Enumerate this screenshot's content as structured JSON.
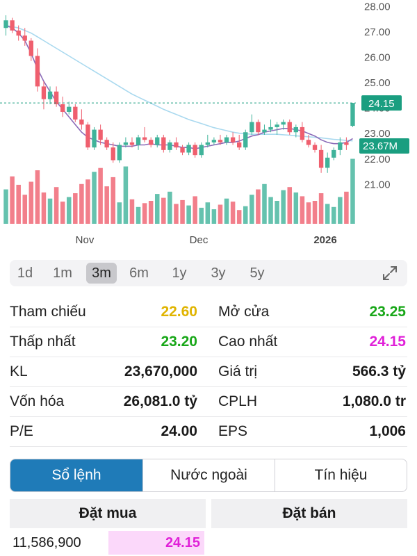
{
  "chart": {
    "y_ticks": [
      "28.00",
      "27.00",
      "26.00",
      "25.00",
      "24.00",
      "23.00",
      "22.00",
      "21.00"
    ],
    "x_labels": [
      "Nov",
      "Dec",
      "2026"
    ],
    "last_price_label": "24.15",
    "volume_label": "23.67M",
    "colors": {
      "up": "#3fb39a",
      "down": "#ef5f6e",
      "ma_short": "#8b6bb8",
      "ma_long": "#a9d9ef",
      "accent": "#1a9e80"
    }
  },
  "chart_data": {
    "type": "candlestick",
    "y_range": [
      20.0,
      28.2
    ],
    "y_ticks": [
      28,
      27,
      26,
      25,
      24,
      23,
      22,
      21
    ],
    "x_labels": [
      "Nov",
      "Dec",
      "2026"
    ],
    "last_price": 24.15,
    "last_volume": "23.67M",
    "candles": [
      {
        "o": 27.1,
        "h": 27.6,
        "l": 26.8,
        "c": 27.4
      },
      {
        "o": 27.4,
        "h": 27.5,
        "l": 26.9,
        "c": 27.0
      },
      {
        "o": 27.0,
        "h": 27.2,
        "l": 26.6,
        "c": 26.8
      },
      {
        "o": 26.8,
        "h": 27.1,
        "l": 26.4,
        "c": 26.6
      },
      {
        "o": 26.6,
        "h": 26.7,
        "l": 25.8,
        "c": 26.0
      },
      {
        "o": 26.0,
        "h": 26.3,
        "l": 24.6,
        "c": 24.8
      },
      {
        "o": 24.8,
        "h": 25.0,
        "l": 23.9,
        "c": 24.3
      },
      {
        "o": 24.3,
        "h": 24.8,
        "l": 24.1,
        "c": 24.6
      },
      {
        "o": 24.6,
        "h": 24.8,
        "l": 24.0,
        "c": 24.1
      },
      {
        "o": 24.1,
        "h": 24.4,
        "l": 23.6,
        "c": 23.8
      },
      {
        "o": 23.8,
        "h": 24.2,
        "l": 23.7,
        "c": 24.0
      },
      {
        "o": 24.0,
        "h": 24.1,
        "l": 23.4,
        "c": 23.5
      },
      {
        "o": 23.5,
        "h": 23.9,
        "l": 23.1,
        "c": 23.3
      },
      {
        "o": 23.3,
        "h": 23.4,
        "l": 22.3,
        "c": 22.4
      },
      {
        "o": 22.4,
        "h": 23.2,
        "l": 22.3,
        "c": 23.1
      },
      {
        "o": 23.1,
        "h": 23.3,
        "l": 22.5,
        "c": 22.7
      },
      {
        "o": 22.7,
        "h": 22.8,
        "l": 22.3,
        "c": 22.4
      },
      {
        "o": 22.4,
        "h": 22.6,
        "l": 21.8,
        "c": 21.9
      },
      {
        "o": 21.9,
        "h": 22.6,
        "l": 21.8,
        "c": 22.5
      },
      {
        "o": 22.5,
        "h": 22.8,
        "l": 22.4,
        "c": 22.6
      },
      {
        "o": 22.6,
        "h": 22.8,
        "l": 22.4,
        "c": 22.5
      },
      {
        "o": 22.5,
        "h": 22.9,
        "l": 22.3,
        "c": 22.8
      },
      {
        "o": 22.8,
        "h": 23.2,
        "l": 22.6,
        "c": 22.7
      },
      {
        "o": 22.7,
        "h": 22.8,
        "l": 22.4,
        "c": 22.5
      },
      {
        "o": 22.5,
        "h": 22.9,
        "l": 22.4,
        "c": 22.8
      },
      {
        "o": 22.8,
        "h": 22.9,
        "l": 22.2,
        "c": 22.3
      },
      {
        "o": 22.3,
        "h": 22.7,
        "l": 22.2,
        "c": 22.6
      },
      {
        "o": 22.6,
        "h": 22.8,
        "l": 22.3,
        "c": 22.4
      },
      {
        "o": 22.4,
        "h": 22.5,
        "l": 22.1,
        "c": 22.2
      },
      {
        "o": 22.2,
        "h": 22.6,
        "l": 22.1,
        "c": 22.5
      },
      {
        "o": 22.5,
        "h": 22.6,
        "l": 22.0,
        "c": 22.1
      },
      {
        "o": 22.1,
        "h": 22.6,
        "l": 22.0,
        "c": 22.5
      },
      {
        "o": 22.5,
        "h": 22.9,
        "l": 22.4,
        "c": 22.6
      },
      {
        "o": 22.6,
        "h": 22.8,
        "l": 22.5,
        "c": 22.7
      },
      {
        "o": 22.7,
        "h": 22.9,
        "l": 22.5,
        "c": 22.6
      },
      {
        "o": 22.6,
        "h": 22.9,
        "l": 22.5,
        "c": 22.8
      },
      {
        "o": 22.8,
        "h": 23.0,
        "l": 22.5,
        "c": 22.6
      },
      {
        "o": 22.6,
        "h": 22.9,
        "l": 22.3,
        "c": 22.4
      },
      {
        "o": 22.4,
        "h": 23.1,
        "l": 22.3,
        "c": 23.0
      },
      {
        "o": 23.0,
        "h": 23.7,
        "l": 22.9,
        "c": 23.4
      },
      {
        "o": 23.4,
        "h": 23.5,
        "l": 22.9,
        "c": 23.0
      },
      {
        "o": 23.0,
        "h": 23.3,
        "l": 22.9,
        "c": 23.1
      },
      {
        "o": 23.1,
        "h": 23.5,
        "l": 23.0,
        "c": 23.2
      },
      {
        "o": 23.2,
        "h": 23.4,
        "l": 22.9,
        "c": 23.3
      },
      {
        "o": 23.3,
        "h": 23.5,
        "l": 23.1,
        "c": 23.4
      },
      {
        "o": 23.4,
        "h": 23.5,
        "l": 22.9,
        "c": 23.0
      },
      {
        "o": 23.0,
        "h": 23.3,
        "l": 22.8,
        "c": 23.2
      },
      {
        "o": 23.2,
        "h": 23.4,
        "l": 22.6,
        "c": 22.7
      },
      {
        "o": 22.7,
        "h": 22.9,
        "l": 22.4,
        "c": 22.5
      },
      {
        "o": 22.5,
        "h": 22.6,
        "l": 22.2,
        "c": 22.3
      },
      {
        "o": 22.3,
        "h": 22.5,
        "l": 21.4,
        "c": 21.6
      },
      {
        "o": 21.6,
        "h": 22.2,
        "l": 21.4,
        "c": 22.0
      },
      {
        "o": 22.0,
        "h": 22.4,
        "l": 21.9,
        "c": 22.3
      },
      {
        "o": 22.3,
        "h": 22.8,
        "l": 22.1,
        "c": 22.6
      },
      {
        "o": 22.6,
        "h": 22.8,
        "l": 22.3,
        "c": 22.5
      },
      {
        "o": 23.25,
        "h": 24.15,
        "l": 23.2,
        "c": 24.15
      }
    ],
    "volumes": [
      0.45,
      0.62,
      0.51,
      0.38,
      0.55,
      0.7,
      0.41,
      0.33,
      0.48,
      0.29,
      0.35,
      0.4,
      0.52,
      0.58,
      0.68,
      0.73,
      0.49,
      0.61,
      0.28,
      0.75,
      0.32,
      0.22,
      0.27,
      0.3,
      0.39,
      0.34,
      0.42,
      0.26,
      0.31,
      0.24,
      0.36,
      0.21,
      0.28,
      0.19,
      0.25,
      0.33,
      0.29,
      0.18,
      0.23,
      0.38,
      0.45,
      0.52,
      0.35,
      0.3,
      0.44,
      0.48,
      0.41,
      0.36,
      0.28,
      0.3,
      0.4,
      0.26,
      0.22,
      0.35,
      0.42,
      0.85
    ],
    "ma_short": [
      27.2,
      27.1,
      26.9,
      26.6,
      26.1,
      25.5,
      25.0,
      24.6,
      24.2,
      23.9,
      23.6,
      23.3,
      23.0,
      22.8,
      22.7,
      22.6,
      22.55,
      22.5,
      22.45,
      22.45,
      22.45,
      22.5,
      22.5,
      22.55,
      22.5,
      22.5,
      22.5,
      22.45,
      22.4,
      22.4,
      22.35,
      22.4,
      22.45,
      22.5,
      22.55,
      22.6,
      22.6,
      22.65,
      22.75,
      22.85,
      22.9,
      23.0,
      23.05,
      23.1,
      23.15,
      23.15,
      23.1,
      23.05,
      22.95,
      22.85,
      22.7,
      22.6,
      22.55,
      22.55,
      22.6,
      22.75
    ],
    "ma_long": [
      27.2,
      27.15,
      27.1,
      27.0,
      26.9,
      26.75,
      26.6,
      26.45,
      26.3,
      26.15,
      26.0,
      25.85,
      25.7,
      25.55,
      25.4,
      25.25,
      25.1,
      24.95,
      24.8,
      24.65,
      24.5,
      24.38,
      24.26,
      24.14,
      24.02,
      23.9,
      23.8,
      23.7,
      23.6,
      23.5,
      23.42,
      23.34,
      23.26,
      23.18,
      23.12,
      23.06,
      23.0,
      22.96,
      22.94,
      22.92,
      22.92,
      22.92,
      22.92,
      22.92,
      22.9,
      22.88,
      22.86,
      22.84,
      22.82,
      22.8,
      22.78,
      22.75,
      22.72,
      22.7,
      22.68,
      22.66
    ]
  },
  "timeframes": {
    "items": [
      "1d",
      "1m",
      "3m",
      "6m",
      "1y",
      "3y",
      "5y"
    ],
    "active": "3m"
  },
  "stats": {
    "left": [
      {
        "label": "Tham chiếu",
        "value": "22.60",
        "color": "#e0b400"
      },
      {
        "label": "Thấp nhất",
        "value": "23.20",
        "color": "#18a718"
      },
      {
        "label": "KL",
        "value": "23,670,000",
        "color": "#1a1a1a"
      },
      {
        "label": "Vốn hóa",
        "value": "26,081.0 tỷ",
        "color": "#1a1a1a"
      },
      {
        "label": "P/E",
        "value": "24.00",
        "color": "#1a1a1a"
      }
    ],
    "right": [
      {
        "label": "Mở cửa",
        "value": "23.25",
        "color": "#18a718"
      },
      {
        "label": "Cao nhất",
        "value": "24.15",
        "color": "#e020d8"
      },
      {
        "label": "Giá trị",
        "value": "566.3 tỷ",
        "color": "#1a1a1a"
      },
      {
        "label": "CPLH",
        "value": "1,080.0 tr",
        "color": "#1a1a1a"
      },
      {
        "label": "EPS",
        "value": "1,006",
        "color": "#1a1a1a"
      }
    ]
  },
  "tabs": {
    "items": [
      "Sổ lệnh",
      "Nước ngoài",
      "Tín hiệu"
    ],
    "active": "Sổ lệnh"
  },
  "orderbook": {
    "buy_header": "Đặt mua",
    "sell_header": "Đặt bán",
    "row": {
      "volume": "11,586,900",
      "price": "24.15"
    },
    "price_color": "#e020d8",
    "price_bg": "#fbd8fa"
  }
}
